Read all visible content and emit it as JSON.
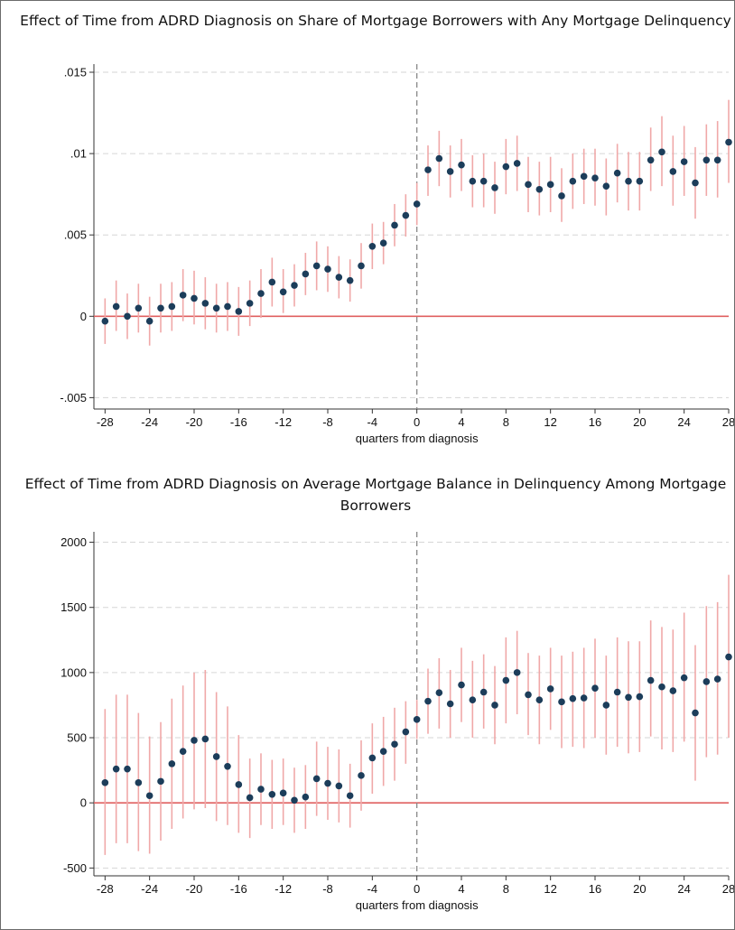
{
  "chart_data": [
    {
      "type": "scatter",
      "title": "Effect of Time from ADRD Diagnosis on Share of Mortgage Borrowers with Any Mortgage Delinquency",
      "xlabel": "quarters from diagnosis",
      "ylabel": "",
      "x_ticks": [
        "-28",
        "-24",
        "-20",
        "-16",
        "-12",
        "-8",
        "-4",
        "0",
        "4",
        "8",
        "12",
        "16",
        "20",
        "24",
        "28"
      ],
      "y_ticks": [
        ".015",
        ".01",
        ".005",
        "0",
        "-.005"
      ],
      "xlim": [
        -29,
        28
      ],
      "ylim": [
        -0.0057,
        0.0155
      ],
      "reference_lines": {
        "y": 0,
        "x": 0
      },
      "grid": "horizontal dashed",
      "colors": {
        "point": "#1c3d5a",
        "ci": "#f0a8a8",
        "zero_line": "#e06060",
        "event_line": "#888888"
      },
      "x": [
        -28,
        -27,
        -26,
        -25,
        -24,
        -23,
        -22,
        -21,
        -20,
        -19,
        -18,
        -17,
        -16,
        -15,
        -14,
        -13,
        -12,
        -11,
        -10,
        -9,
        -8,
        -7,
        -6,
        -5,
        -4,
        -3,
        -2,
        -1,
        0,
        1,
        2,
        3,
        4,
        5,
        6,
        7,
        8,
        9,
        10,
        11,
        12,
        13,
        14,
        15,
        16,
        17,
        18,
        19,
        20,
        21,
        22,
        23,
        24,
        25,
        26,
        27,
        28
      ],
      "y": [
        -0.0003,
        0.0006,
        0.0,
        0.0005,
        -0.0003,
        0.0005,
        0.0006,
        0.0013,
        0.0011,
        0.0008,
        0.0005,
        0.0006,
        0.0003,
        0.0008,
        0.0014,
        0.0021,
        0.0015,
        0.0019,
        0.0026,
        0.0031,
        0.0029,
        0.0024,
        0.0022,
        0.0031,
        0.0043,
        0.0045,
        0.0056,
        0.0062,
        0.0069,
        0.009,
        0.0097,
        0.0089,
        0.0093,
        0.0083,
        0.0083,
        0.0079,
        0.0092,
        0.0094,
        0.0081,
        0.0078,
        0.0081,
        0.0074,
        0.0083,
        0.0086,
        0.0085,
        0.008,
        0.0088,
        0.0083,
        0.0083,
        0.0096,
        0.0101,
        0.0089,
        0.0095,
        0.0082,
        0.0096,
        0.0096,
        0.0107
      ],
      "ci_low": [
        -0.0017,
        -0.0009,
        -0.0014,
        -0.001,
        -0.0018,
        -0.001,
        -0.0009,
        -0.0003,
        -0.0005,
        -0.0008,
        -0.001,
        -0.0009,
        -0.0012,
        -0.0006,
        -0.0001,
        0.0006,
        0.0002,
        0.0006,
        0.0013,
        0.0016,
        0.0015,
        0.0011,
        0.0009,
        0.0017,
        0.0029,
        0.0032,
        0.0043,
        0.0049,
        0.0056,
        0.0074,
        0.008,
        0.0073,
        0.0077,
        0.0067,
        0.0067,
        0.0063,
        0.0075,
        0.0077,
        0.0064,
        0.0062,
        0.0064,
        0.0058,
        0.0066,
        0.0069,
        0.0068,
        0.0062,
        0.007,
        0.0065,
        0.0065,
        0.0077,
        0.008,
        0.0068,
        0.0074,
        0.006,
        0.0074,
        0.0073,
        0.0082
      ],
      "ci_high": [
        0.0011,
        0.0022,
        0.0014,
        0.002,
        0.0012,
        0.002,
        0.0021,
        0.0029,
        0.0028,
        0.0024,
        0.002,
        0.0021,
        0.0018,
        0.0022,
        0.0029,
        0.0036,
        0.0029,
        0.0032,
        0.0039,
        0.0046,
        0.0043,
        0.0037,
        0.0035,
        0.0045,
        0.0057,
        0.0058,
        0.0069,
        0.0075,
        0.0082,
        0.0105,
        0.0114,
        0.0105,
        0.0109,
        0.0099,
        0.01,
        0.0095,
        0.0109,
        0.0111,
        0.0098,
        0.0095,
        0.0098,
        0.0091,
        0.01,
        0.0103,
        0.0103,
        0.0097,
        0.0106,
        0.0101,
        0.0101,
        0.0116,
        0.0123,
        0.0111,
        0.0117,
        0.0104,
        0.0118,
        0.012,
        0.0133
      ]
    },
    {
      "type": "scatter",
      "title": "Effect of Time from ADRD Diagnosis on Average Mortgage Balance in Delinquency Among Mortgage Borrowers",
      "xlabel": "quarters from diagnosis",
      "ylabel": "",
      "x_ticks": [
        "-28",
        "-24",
        "-20",
        "-16",
        "-12",
        "-8",
        "-4",
        "0",
        "4",
        "8",
        "12",
        "16",
        "20",
        "24",
        "28"
      ],
      "y_ticks": [
        "2000",
        "1500",
        "1000",
        "500",
        "0",
        "-500"
      ],
      "xlim": [
        -29,
        28
      ],
      "ylim": [
        -560,
        2080
      ],
      "reference_lines": {
        "y": 0,
        "x": 0
      },
      "grid": "horizontal dashed",
      "colors": {
        "point": "#1c3d5a",
        "ci": "#f0a8a8",
        "zero_line": "#e06060",
        "event_line": "#888888"
      },
      "x": [
        -28,
        -27,
        -26,
        -25,
        -24,
        -23,
        -22,
        -21,
        -20,
        -19,
        -18,
        -17,
        -16,
        -15,
        -14,
        -13,
        -12,
        -11,
        -10,
        -9,
        -8,
        -7,
        -6,
        -5,
        -4,
        -3,
        -2,
        -1,
        0,
        1,
        2,
        3,
        4,
        5,
        6,
        7,
        8,
        9,
        10,
        11,
        12,
        13,
        14,
        15,
        16,
        17,
        18,
        19,
        20,
        21,
        22,
        23,
        24,
        25,
        26,
        27,
        28
      ],
      "y": [
        155,
        260,
        260,
        155,
        55,
        165,
        300,
        395,
        480,
        490,
        355,
        280,
        140,
        40,
        105,
        65,
        75,
        20,
        45,
        185,
        150,
        130,
        55,
        210,
        345,
        395,
        450,
        545,
        640,
        780,
        845,
        760,
        905,
        790,
        850,
        750,
        940,
        1000,
        830,
        790,
        875,
        775,
        800,
        805,
        880,
        750,
        850,
        810,
        815,
        940,
        890,
        860,
        960,
        690,
        930,
        950,
        1120
      ],
      "ci_low": [
        -400,
        -310,
        -310,
        -370,
        -390,
        -290,
        -200,
        -120,
        -50,
        -40,
        -140,
        -170,
        -230,
        -270,
        -170,
        -200,
        -170,
        -230,
        -200,
        -100,
        -130,
        -150,
        -190,
        -60,
        70,
        130,
        170,
        300,
        490,
        530,
        570,
        500,
        620,
        500,
        570,
        450,
        610,
        680,
        520,
        450,
        560,
        420,
        430,
        420,
        500,
        370,
        430,
        380,
        390,
        510,
        410,
        390,
        470,
        170,
        350,
        370,
        500
      ],
      "ci_high": [
        720,
        830,
        830,
        690,
        510,
        620,
        800,
        900,
        1000,
        1020,
        850,
        740,
        520,
        340,
        380,
        330,
        340,
        270,
        290,
        470,
        430,
        410,
        300,
        480,
        610,
        660,
        730,
        780,
        790,
        1030,
        1110,
        1020,
        1190,
        1090,
        1140,
        1050,
        1270,
        1320,
        1150,
        1130,
        1190,
        1130,
        1160,
        1190,
        1260,
        1130,
        1270,
        1240,
        1240,
        1400,
        1350,
        1330,
        1460,
        1210,
        1510,
        1540,
        1750
      ]
    }
  ]
}
